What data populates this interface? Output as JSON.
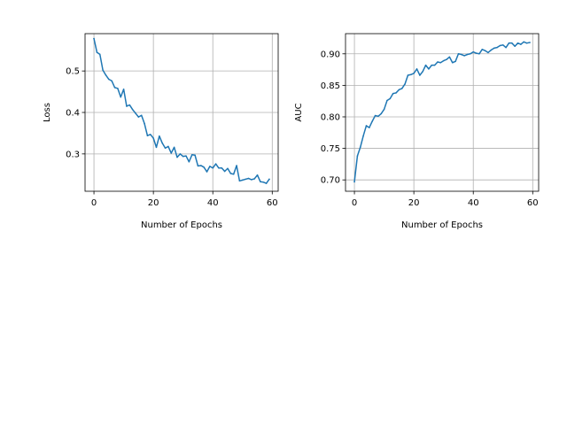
{
  "chart_data": [
    {
      "type": "line",
      "title": "",
      "xlabel": "Number of Epochs",
      "ylabel": "Loss",
      "xlim": [
        -3,
        62
      ],
      "ylim": [
        0.21,
        0.59
      ],
      "xticks": [
        0,
        20,
        40,
        60
      ],
      "xtick_labels": [
        "0",
        "20",
        "40",
        "60"
      ],
      "yticks": [
        0.3,
        0.4,
        0.5
      ],
      "ytick_labels": [
        "0.3",
        "0.4",
        "0.5"
      ],
      "grid": true,
      "legend": "none",
      "series": [
        {
          "color": "#1f77b4",
          "x": [
            0,
            1,
            2,
            3,
            4,
            5,
            6,
            7,
            8,
            9,
            10,
            11,
            12,
            13,
            14,
            15,
            16,
            17,
            18,
            19,
            20,
            21,
            22,
            23,
            24,
            25,
            26,
            27,
            28,
            29,
            30,
            31,
            32,
            33,
            34,
            35,
            36,
            37,
            38,
            39,
            40,
            41,
            42,
            43,
            44,
            45,
            46,
            47,
            48,
            49,
            50,
            51,
            52,
            53,
            54,
            55,
            56,
            57,
            58,
            59
          ],
          "y": [
            0.578,
            0.545,
            0.54,
            0.502,
            0.49,
            0.48,
            0.476,
            0.46,
            0.458,
            0.437,
            0.456,
            0.415,
            0.418,
            0.407,
            0.398,
            0.389,
            0.393,
            0.373,
            0.344,
            0.347,
            0.338,
            0.316,
            0.343,
            0.326,
            0.314,
            0.318,
            0.302,
            0.316,
            0.292,
            0.3,
            0.294,
            0.295,
            0.281,
            0.298,
            0.297,
            0.271,
            0.272,
            0.268,
            0.257,
            0.27,
            0.266,
            0.276,
            0.266,
            0.266,
            0.258,
            0.265,
            0.253,
            0.251,
            0.272,
            0.235,
            0.237,
            0.239,
            0.241,
            0.238,
            0.24,
            0.249,
            0.233,
            0.232,
            0.229,
            0.239
          ]
        }
      ]
    },
    {
      "type": "line",
      "title": "",
      "xlabel": "Number of Epochs",
      "ylabel": "AUC",
      "xlim": [
        -3,
        62
      ],
      "ylim": [
        0.682,
        0.932
      ],
      "xticks": [
        0,
        20,
        40,
        60
      ],
      "xtick_labels": [
        "0",
        "20",
        "40",
        "60"
      ],
      "yticks": [
        0.7,
        0.75,
        0.8,
        0.85,
        0.9
      ],
      "ytick_labels": [
        "0.70",
        "0.75",
        "0.80",
        "0.85",
        "0.90"
      ],
      "grid": true,
      "legend": "none",
      "series": [
        {
          "color": "#1f77b4",
          "x": [
            0,
            1,
            2,
            3,
            4,
            5,
            6,
            7,
            8,
            9,
            10,
            11,
            12,
            13,
            14,
            15,
            16,
            17,
            18,
            19,
            20,
            21,
            22,
            23,
            24,
            25,
            26,
            27,
            28,
            29,
            30,
            31,
            32,
            33,
            34,
            35,
            36,
            37,
            38,
            39,
            40,
            41,
            42,
            43,
            44,
            45,
            46,
            47,
            48,
            49,
            50,
            51,
            52,
            53,
            54,
            55,
            56,
            57,
            58,
            59
          ],
          "y": [
            0.697,
            0.738,
            0.752,
            0.77,
            0.786,
            0.783,
            0.793,
            0.802,
            0.801,
            0.805,
            0.812,
            0.826,
            0.829,
            0.837,
            0.838,
            0.843,
            0.845,
            0.852,
            0.866,
            0.867,
            0.869,
            0.876,
            0.866,
            0.872,
            0.882,
            0.876,
            0.882,
            0.882,
            0.887,
            0.886,
            0.889,
            0.891,
            0.895,
            0.886,
            0.888,
            0.9,
            0.899,
            0.897,
            0.899,
            0.9,
            0.903,
            0.901,
            0.9,
            0.907,
            0.905,
            0.902,
            0.906,
            0.909,
            0.91,
            0.913,
            0.914,
            0.91,
            0.917,
            0.917,
            0.912,
            0.917,
            0.915,
            0.919,
            0.917,
            0.918
          ]
        }
      ]
    }
  ]
}
